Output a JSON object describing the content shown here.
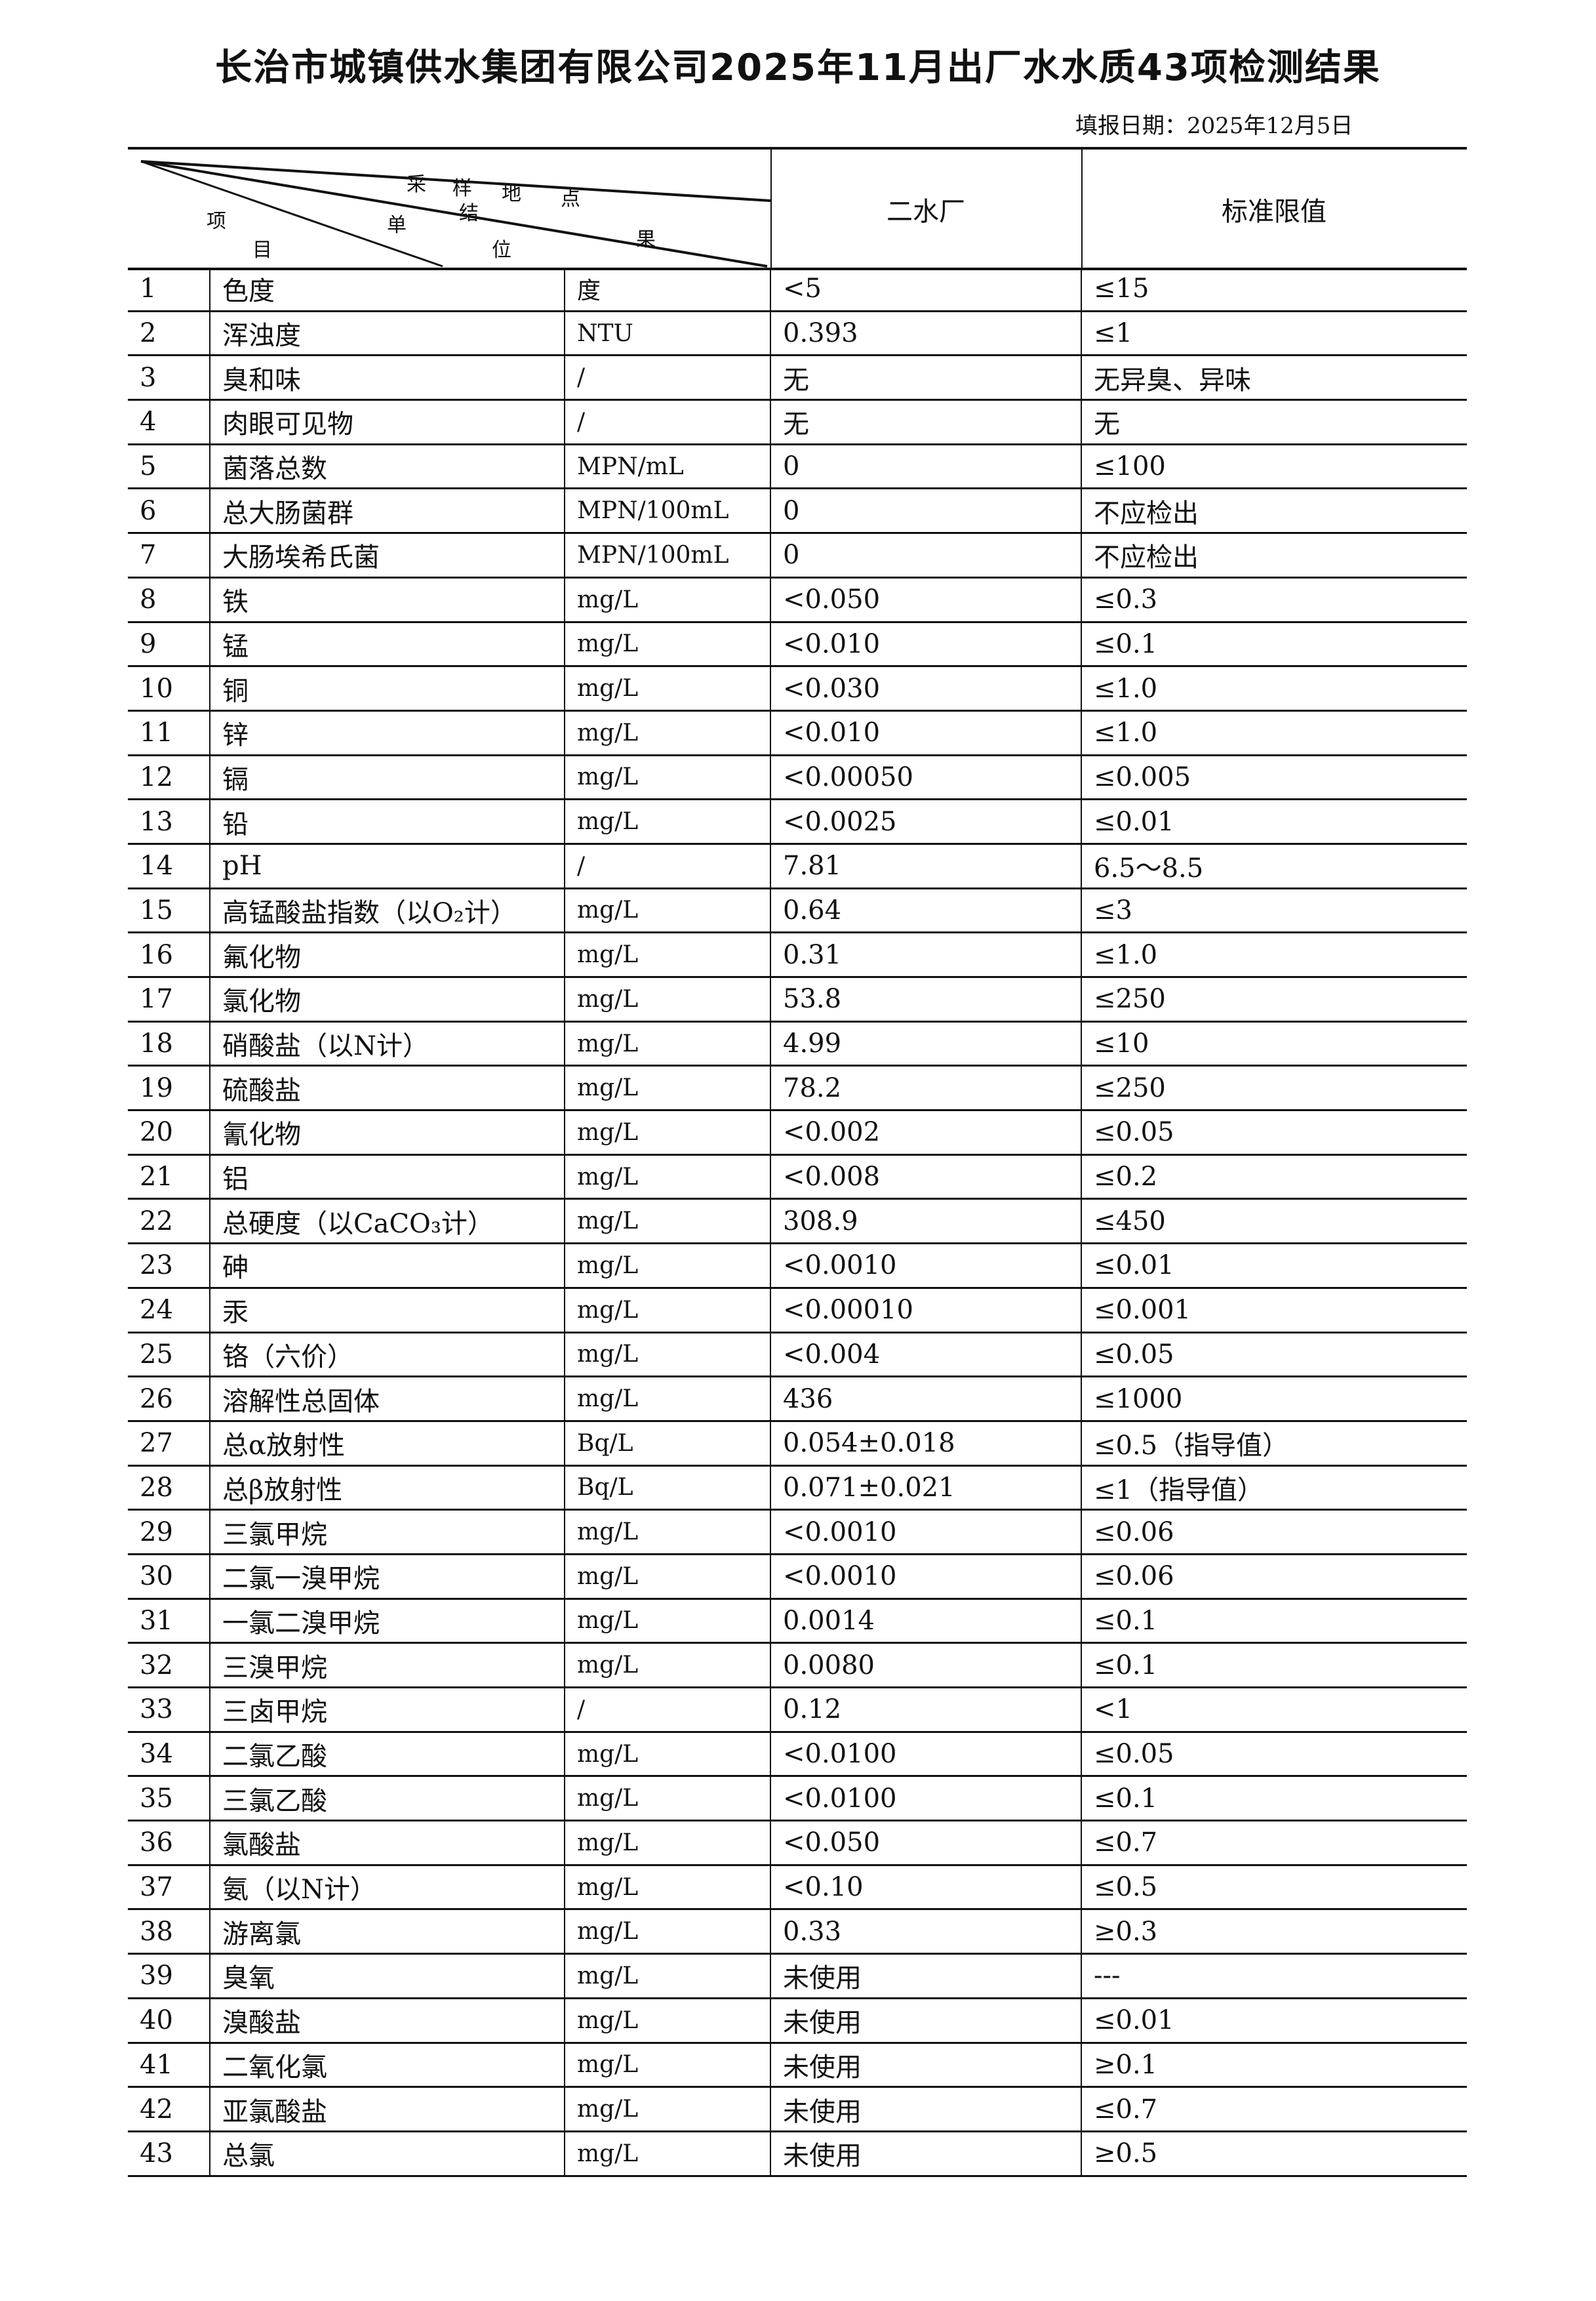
{
  "title": "长治市城镇供水集团有限公司2025年11月出厂水水质43项检测结果",
  "report_date": "填报日期：2025年12月5日",
  "header": {
    "diag_labels": {
      "sampling_site": [
        "采",
        "样",
        "地",
        "点"
      ],
      "result": [
        "结",
        "果"
      ],
      "unit": [
        "单",
        "位"
      ],
      "item": [
        "项",
        "目"
      ]
    },
    "plant": "二水厂",
    "limit": "标准限值"
  },
  "rows": [
    {
      "no": "1",
      "item": "色度",
      "unit": "度",
      "value": "<5",
      "limit": "≤15"
    },
    {
      "no": "2",
      "item": "浑浊度",
      "unit": "NTU",
      "value": "0.393",
      "limit": "≤1"
    },
    {
      "no": "3",
      "item": "臭和味",
      "unit": "/",
      "value": "无",
      "limit": "无异臭、异味"
    },
    {
      "no": "4",
      "item": "肉眼可见物",
      "unit": "/",
      "value": "无",
      "limit": "无"
    },
    {
      "no": "5",
      "item": "菌落总数",
      "unit": "MPN/mL",
      "value": "0",
      "limit": "≤100"
    },
    {
      "no": "6",
      "item": "总大肠菌群",
      "unit": "MPN/100mL",
      "value": "0",
      "limit": "不应检出"
    },
    {
      "no": "7",
      "item": "大肠埃希氏菌",
      "unit": "MPN/100mL",
      "value": "0",
      "limit": "不应检出"
    },
    {
      "no": "8",
      "item": "铁",
      "unit": "mg/L",
      "value": "<0.050",
      "limit": "≤0.3"
    },
    {
      "no": "9",
      "item": "锰",
      "unit": "mg/L",
      "value": "<0.010",
      "limit": "≤0.1"
    },
    {
      "no": "10",
      "item": "铜",
      "unit": "mg/L",
      "value": "<0.030",
      "limit": "≤1.0"
    },
    {
      "no": "11",
      "item": "锌",
      "unit": "mg/L",
      "value": "<0.010",
      "limit": "≤1.0"
    },
    {
      "no": "12",
      "item": "镉",
      "unit": "mg/L",
      "value": "<0.00050",
      "limit": "≤0.005"
    },
    {
      "no": "13",
      "item": "铅",
      "unit": "mg/L",
      "value": "<0.0025",
      "limit": "≤0.01"
    },
    {
      "no": "14",
      "item": "pH",
      "unit": "/",
      "value": "7.81",
      "limit": "6.5～8.5"
    },
    {
      "no": "15",
      "item": "高锰酸盐指数（以O₂计）",
      "unit": "mg/L",
      "value": "0.64",
      "limit": "≤3"
    },
    {
      "no": "16",
      "item": "氟化物",
      "unit": "mg/L",
      "value": "0.31",
      "limit": "≤1.0"
    },
    {
      "no": "17",
      "item": "氯化物",
      "unit": "mg/L",
      "value": "53.8",
      "limit": "≤250"
    },
    {
      "no": "18",
      "item": "硝酸盐（以N计）",
      "unit": "mg/L",
      "value": "4.99",
      "limit": "≤10"
    },
    {
      "no": "19",
      "item": "硫酸盐",
      "unit": "mg/L",
      "value": "78.2",
      "limit": "≤250"
    },
    {
      "no": "20",
      "item": "氰化物",
      "unit": "mg/L",
      "value": "<0.002",
      "limit": "≤0.05"
    },
    {
      "no": "21",
      "item": "铝",
      "unit": "mg/L",
      "value": "<0.008",
      "limit": "≤0.2"
    },
    {
      "no": "22",
      "item": "总硬度（以CaCO₃计）",
      "unit": "mg/L",
      "value": "308.9",
      "limit": "≤450"
    },
    {
      "no": "23",
      "item": "砷",
      "unit": "mg/L",
      "value": "<0.0010",
      "limit": "≤0.01"
    },
    {
      "no": "24",
      "item": "汞",
      "unit": "mg/L",
      "value": "<0.00010",
      "limit": "≤0.001"
    },
    {
      "no": "25",
      "item": "铬（六价）",
      "unit": "mg/L",
      "value": "<0.004",
      "limit": "≤0.05"
    },
    {
      "no": "26",
      "item": "溶解性总固体",
      "unit": "mg/L",
      "value": "436",
      "limit": "≤1000"
    },
    {
      "no": "27",
      "item": "总α放射性",
      "unit": "Bq/L",
      "value": "0.054±0.018",
      "limit": "≤0.5（指导值）"
    },
    {
      "no": "28",
      "item": "总β放射性",
      "unit": "Bq/L",
      "value": "0.071±0.021",
      "limit": "≤1（指导值）"
    },
    {
      "no": "29",
      "item": "三氯甲烷",
      "unit": "mg/L",
      "value": "<0.0010",
      "limit": "≤0.06"
    },
    {
      "no": "30",
      "item": "二氯一溴甲烷",
      "unit": "mg/L",
      "value": "<0.0010",
      "limit": "≤0.06"
    },
    {
      "no": "31",
      "item": "一氯二溴甲烷",
      "unit": "mg/L",
      "value": "0.0014",
      "limit": "≤0.1"
    },
    {
      "no": "32",
      "item": "三溴甲烷",
      "unit": "mg/L",
      "value": "0.0080",
      "limit": "≤0.1"
    },
    {
      "no": "33",
      "item": "三卤甲烷",
      "unit": "/",
      "value": "0.12",
      "limit": "<1"
    },
    {
      "no": "34",
      "item": "二氯乙酸",
      "unit": "mg/L",
      "value": "<0.0100",
      "limit": "≤0.05"
    },
    {
      "no": "35",
      "item": "三氯乙酸",
      "unit": "mg/L",
      "value": "<0.0100",
      "limit": "≤0.1"
    },
    {
      "no": "36",
      "item": "氯酸盐",
      "unit": "mg/L",
      "value": "<0.050",
      "limit": "≤0.7"
    },
    {
      "no": "37",
      "item": "氨（以N计）",
      "unit": "mg/L",
      "value": "<0.10",
      "limit": "≤0.5"
    },
    {
      "no": "38",
      "item": "游离氯",
      "unit": "mg/L",
      "value": "0.33",
      "limit": "≥0.3"
    },
    {
      "no": "39",
      "item": "臭氧",
      "unit": "mg/L",
      "value": "未使用",
      "limit": "---"
    },
    {
      "no": "40",
      "item": "溴酸盐",
      "unit": "mg/L",
      "value": "未使用",
      "limit": "≤0.01"
    },
    {
      "no": "41",
      "item": "二氧化氯",
      "unit": "mg/L",
      "value": "未使用",
      "limit": "≥0.1"
    },
    {
      "no": "42",
      "item": "亚氯酸盐",
      "unit": "mg/L",
      "value": "未使用",
      "limit": "≤0.7"
    },
    {
      "no": "43",
      "item": "总氯",
      "unit": "mg/L",
      "value": "未使用",
      "limit": "≥0.5"
    }
  ]
}
